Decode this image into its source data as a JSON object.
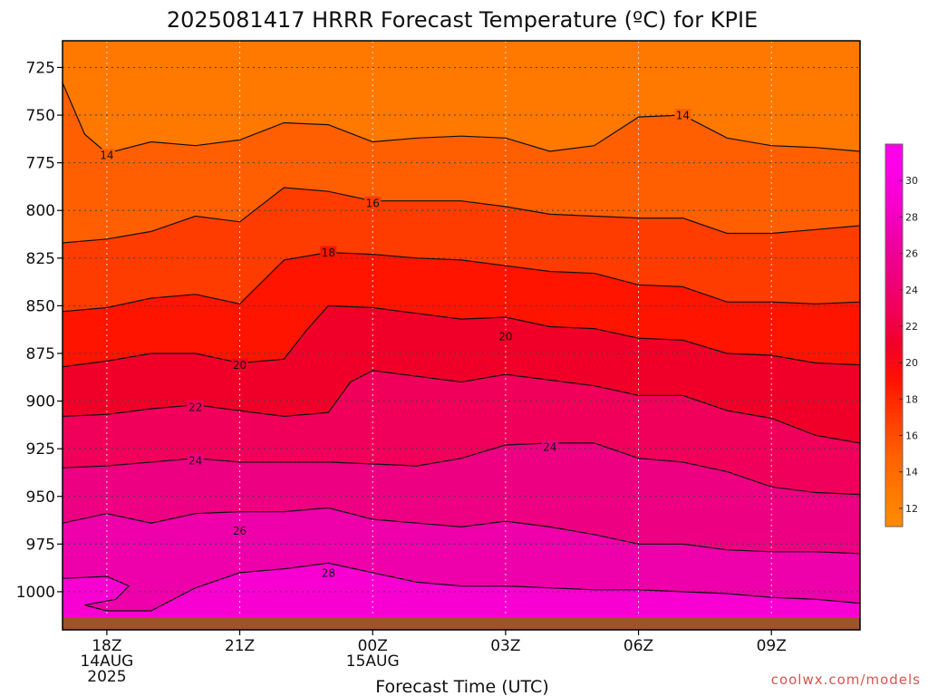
{
  "chart_data": {
    "type": "heatmap",
    "title": "2025081417 HRRR Forecast Temperature (ºC) for KPIE",
    "xlabel": "Forecast Time (UTC)",
    "ylabel": "",
    "credit": "coolwx.com/models",
    "y_axis": {
      "ticks": [
        725,
        750,
        775,
        800,
        825,
        850,
        875,
        900,
        925,
        950,
        975,
        1000
      ],
      "ylim": [
        1020,
        711
      ],
      "grid": true
    },
    "x_axis": {
      "tick_hours": [
        0,
        3,
        6,
        9,
        12,
        15
      ],
      "tick_labels": [
        [
          "18Z",
          "14AUG",
          "2025"
        ],
        [
          "21Z"
        ],
        [
          "00Z",
          "15AUG"
        ],
        [
          "03Z"
        ],
        [
          "06Z"
        ],
        [
          "09Z"
        ]
      ],
      "xlim": [
        -1,
        17
      ],
      "grid": true
    },
    "colorbar": {
      "ticks": [
        12,
        14,
        16,
        18,
        20,
        22,
        24,
        26,
        28,
        30
      ],
      "range": [
        11,
        32
      ]
    },
    "contour_levels": [
      14,
      16,
      18,
      20,
      22,
      24,
      26,
      28
    ],
    "contour_labels": [
      {
        "value": "14",
        "hour": 0.0,
        "pressure": 771
      },
      {
        "value": "14",
        "hour": 13.0,
        "pressure": 750
      },
      {
        "value": "16",
        "hour": 6.0,
        "pressure": 796
      },
      {
        "value": "18",
        "hour": 5.0,
        "pressure": 822
      },
      {
        "value": "20",
        "hour": 3.0,
        "pressure": 881
      },
      {
        "value": "20",
        "hour": 9.0,
        "pressure": 866
      },
      {
        "value": "22",
        "hour": 2.0,
        "pressure": 903
      },
      {
        "value": "24",
        "hour": 2.0,
        "pressure": 931
      },
      {
        "value": "24",
        "hour": 10.0,
        "pressure": 924
      },
      {
        "value": "26",
        "hour": 3.0,
        "pressure": 968
      },
      {
        "value": "28",
        "hour": 5.0,
        "pressure": 990
      }
    ],
    "series": [
      {
        "level": 14,
        "points": [
          [
            -1,
            733
          ],
          [
            -0.5,
            760
          ],
          [
            0,
            770
          ],
          [
            1,
            764
          ],
          [
            2,
            766
          ],
          [
            3,
            763
          ],
          [
            4,
            754
          ],
          [
            5,
            755
          ],
          [
            6,
            764
          ],
          [
            7,
            762
          ],
          [
            8,
            761
          ],
          [
            9,
            762
          ],
          [
            10,
            769
          ],
          [
            11,
            766
          ],
          [
            12,
            751
          ],
          [
            13,
            750
          ],
          [
            14,
            762
          ],
          [
            15,
            766
          ],
          [
            16,
            767
          ],
          [
            17,
            769
          ]
        ]
      },
      {
        "level": 16,
        "points": [
          [
            -1,
            817
          ],
          [
            0,
            815
          ],
          [
            1,
            811
          ],
          [
            2,
            803
          ],
          [
            3,
            806
          ],
          [
            4,
            788
          ],
          [
            5,
            790
          ],
          [
            6,
            795
          ],
          [
            7,
            795
          ],
          [
            8,
            795
          ],
          [
            9,
            798
          ],
          [
            10,
            802
          ],
          [
            11,
            803
          ],
          [
            12,
            804
          ],
          [
            13,
            804
          ],
          [
            14,
            812
          ],
          [
            15,
            812
          ],
          [
            16,
            810
          ],
          [
            17,
            808
          ]
        ]
      },
      {
        "level": 18,
        "points": [
          [
            -1,
            853
          ],
          [
            0,
            851
          ],
          [
            1,
            846
          ],
          [
            2,
            844
          ],
          [
            3,
            849
          ],
          [
            4,
            826
          ],
          [
            5,
            822
          ],
          [
            6,
            823
          ],
          [
            7,
            825
          ],
          [
            8,
            826
          ],
          [
            9,
            829
          ],
          [
            10,
            832
          ],
          [
            11,
            833
          ],
          [
            12,
            839
          ],
          [
            13,
            840
          ],
          [
            14,
            848
          ],
          [
            15,
            848
          ],
          [
            16,
            849
          ],
          [
            17,
            848
          ]
        ]
      },
      {
        "level": 20,
        "points": [
          [
            -1,
            882
          ],
          [
            0,
            879
          ],
          [
            1,
            875
          ],
          [
            2,
            875
          ],
          [
            3,
            880
          ],
          [
            4,
            878
          ],
          [
            4.5,
            863
          ],
          [
            5,
            850
          ],
          [
            6,
            851
          ],
          [
            7,
            854
          ],
          [
            8,
            857
          ],
          [
            9,
            856
          ],
          [
            10,
            861
          ],
          [
            11,
            862
          ],
          [
            12,
            867
          ],
          [
            13,
            868
          ],
          [
            14,
            875
          ],
          [
            15,
            876
          ],
          [
            16,
            880
          ],
          [
            17,
            881
          ]
        ]
      },
      {
        "level": 22,
        "points": [
          [
            -1,
            908
          ],
          [
            0,
            907
          ],
          [
            1,
            904
          ],
          [
            2,
            902
          ],
          [
            3,
            905
          ],
          [
            4,
            908
          ],
          [
            5,
            906
          ],
          [
            5.5,
            890
          ],
          [
            6,
            884
          ],
          [
            7,
            887
          ],
          [
            8,
            890
          ],
          [
            9,
            886
          ],
          [
            10,
            889
          ],
          [
            11,
            892
          ],
          [
            12,
            897
          ],
          [
            13,
            897
          ],
          [
            14,
            905
          ],
          [
            15,
            909
          ],
          [
            16,
            918
          ],
          [
            17,
            922
          ]
        ]
      },
      {
        "level": 24,
        "points": [
          [
            -1,
            935
          ],
          [
            0,
            934
          ],
          [
            1,
            932
          ],
          [
            2,
            930
          ],
          [
            3,
            932
          ],
          [
            4,
            932
          ],
          [
            5,
            932
          ],
          [
            6,
            933
          ],
          [
            7,
            934
          ],
          [
            8,
            930
          ],
          [
            9,
            923
          ],
          [
            10,
            922
          ],
          [
            11,
            922
          ],
          [
            12,
            930
          ],
          [
            13,
            932
          ],
          [
            14,
            937
          ],
          [
            15,
            945
          ],
          [
            16,
            948
          ],
          [
            17,
            949
          ]
        ]
      },
      {
        "level": 26,
        "points": [
          [
            -1,
            964
          ],
          [
            0,
            959
          ],
          [
            1,
            964
          ],
          [
            2,
            959
          ],
          [
            3,
            958
          ],
          [
            4,
            958
          ],
          [
            5,
            956
          ],
          [
            6,
            962
          ],
          [
            7,
            964
          ],
          [
            8,
            966
          ],
          [
            9,
            963
          ],
          [
            10,
            966
          ],
          [
            11,
            970
          ],
          [
            12,
            975
          ],
          [
            13,
            975
          ],
          [
            14,
            978
          ],
          [
            15,
            979
          ],
          [
            16,
            979
          ],
          [
            17,
            980
          ]
        ]
      },
      {
        "level": 28,
        "points": [
          [
            -1,
            993
          ],
          [
            0,
            992
          ],
          [
            0.5,
            997
          ],
          [
            0.2,
            1004
          ],
          [
            -0.5,
            1007
          ],
          [
            0,
            1010
          ],
          [
            1,
            1010
          ],
          [
            1.5,
            1004
          ],
          [
            2,
            998
          ],
          [
            3,
            990
          ],
          [
            4,
            988
          ],
          [
            5,
            985
          ],
          [
            6,
            990
          ],
          [
            7,
            995
          ],
          [
            8,
            997
          ],
          [
            9,
            997
          ],
          [
            10,
            998
          ],
          [
            11,
            999
          ],
          [
            12,
            999
          ],
          [
            13,
            1000
          ],
          [
            14,
            1001
          ],
          [
            15,
            1003
          ],
          [
            16,
            1004
          ],
          [
            17,
            1006
          ]
        ]
      }
    ],
    "colors": {
      "ground": "#a0522d",
      "gridline": "#444444"
    }
  }
}
